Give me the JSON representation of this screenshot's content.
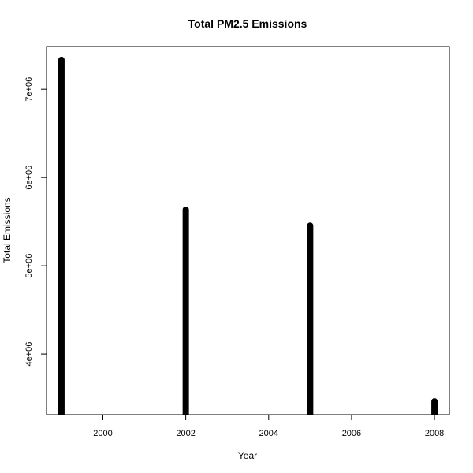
{
  "chart_data": {
    "type": "bar",
    "title": "Total PM2.5 Emissions",
    "xlabel": "Year",
    "ylabel": "Total Emissions",
    "x": [
      1999,
      2002,
      2005,
      2008
    ],
    "values": [
      7332967,
      5635780,
      5454703,
      3464206
    ],
    "xlim": [
      1998.64,
      2008.36
    ],
    "ylim": [
      3313216,
      7483957
    ],
    "x_ticks": [
      2000,
      2002,
      2004,
      2006,
      2008
    ],
    "x_tick_labels": [
      "2000",
      "2002",
      "2004",
      "2006",
      "2008"
    ],
    "y_ticks": [
      4000000,
      5000000,
      6000000,
      7000000
    ],
    "y_tick_labels": [
      "4e+06",
      "5e+06",
      "6e+06",
      "7e+06"
    ],
    "grid": false,
    "bar_color": "#000000"
  }
}
